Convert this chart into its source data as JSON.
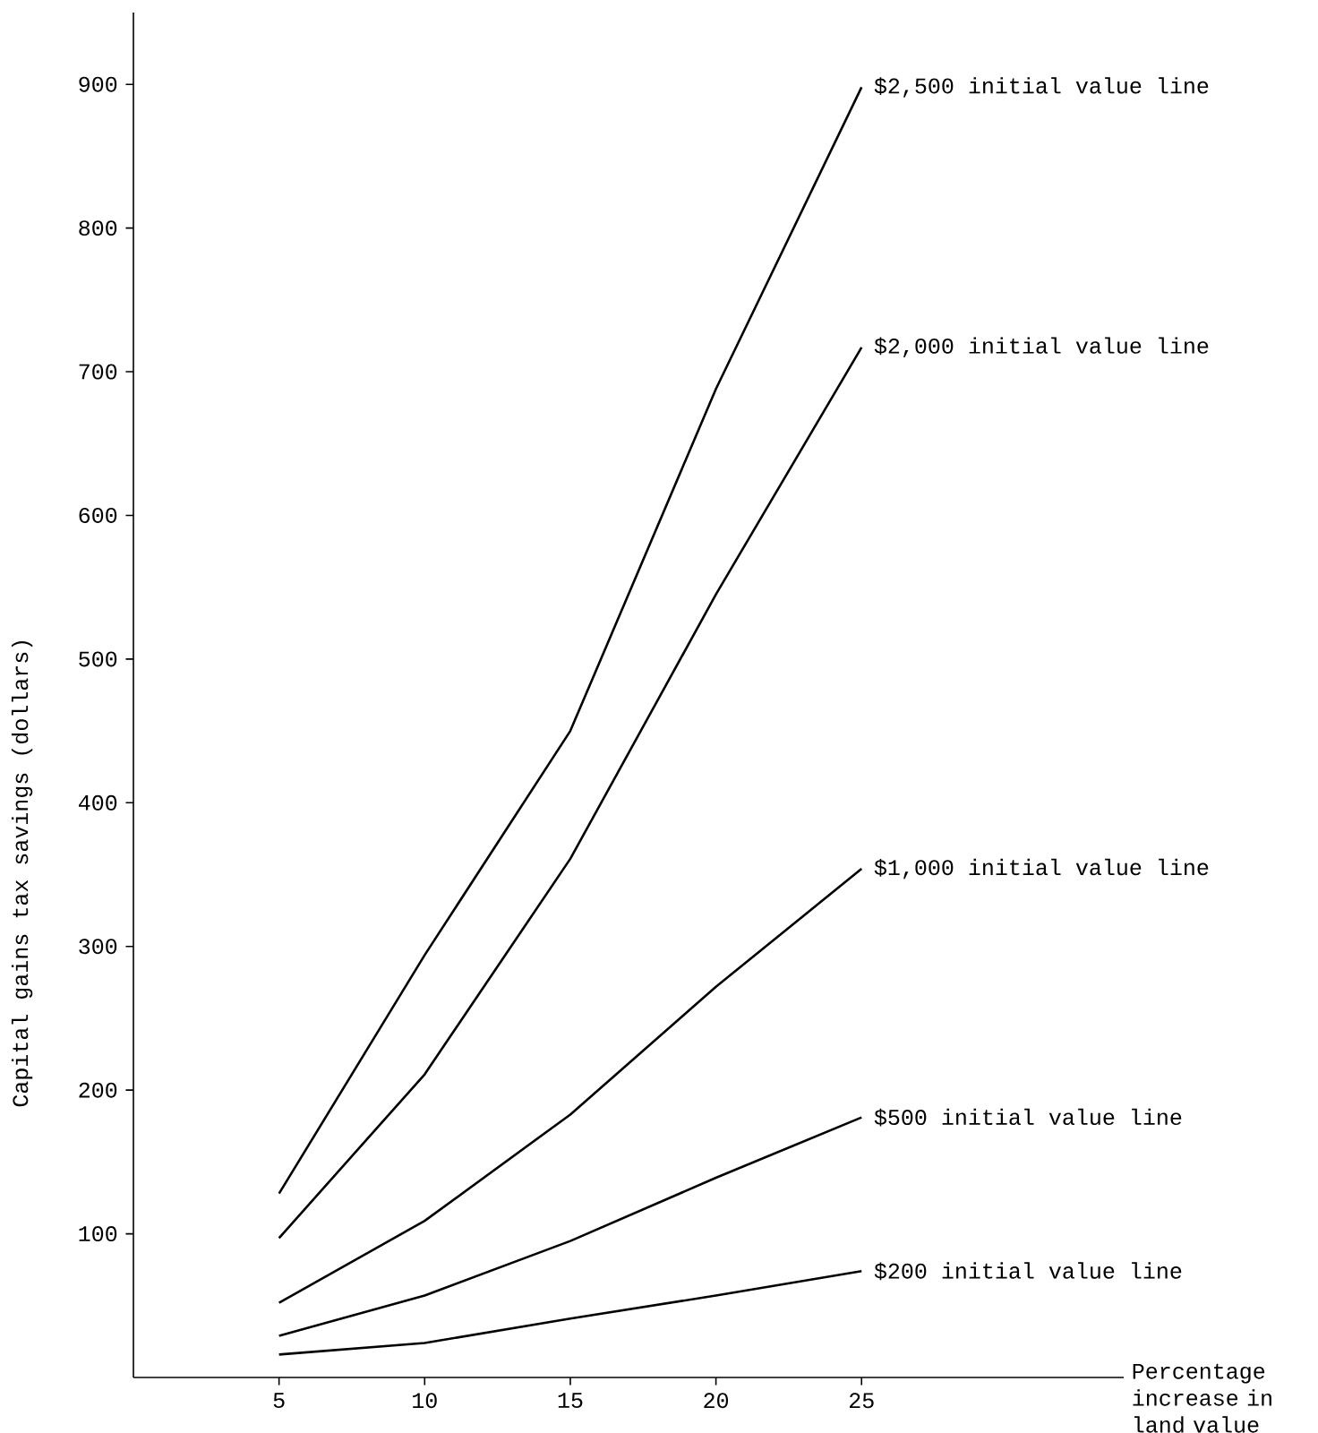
{
  "chart_data": {
    "type": "line",
    "xlabel": "Percentage increase in land value",
    "ylabel": "Capital gains tax savings (dollars)",
    "x": [
      5,
      10,
      15,
      20,
      25
    ],
    "xlim": [
      0,
      34
    ],
    "ylim": [
      0,
      950
    ],
    "xticks": [
      5,
      10,
      15,
      20,
      25
    ],
    "yticks": [
      100,
      200,
      300,
      400,
      500,
      600,
      700,
      800,
      900
    ],
    "grid": false,
    "legend": false,
    "marker": "none",
    "line_style": "solid",
    "series": [
      {
        "name": "$2,500 initial value line",
        "color": "#000000",
        "values": [
          128,
          294,
          450,
          688,
          898
        ]
      },
      {
        "name": "$2,000 initial value line",
        "color": "#000000",
        "values": [
          97,
          211,
          361,
          545,
          717
        ]
      },
      {
        "name": "$1,000 initial value line",
        "color": "#000000",
        "values": [
          52,
          109,
          183,
          272,
          354
        ]
      },
      {
        "name": "$500 initial value line",
        "color": "#000000",
        "values": [
          29,
          57,
          95,
          139,
          181
        ]
      },
      {
        "name": "$200 initial value line",
        "color": "#000000",
        "values": [
          16,
          24,
          41,
          57,
          74
        ]
      }
    ]
  }
}
